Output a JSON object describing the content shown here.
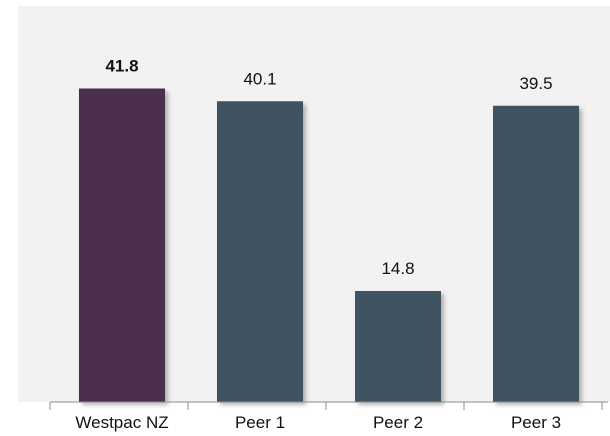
{
  "chart_data": {
    "type": "bar",
    "title": "",
    "xlabel": "",
    "ylabel": "",
    "categories": [
      "Westpac NZ",
      "Peer 1",
      "Peer 2",
      "Peer 3"
    ],
    "values": [
      41.8,
      40.1,
      14.8,
      39.5
    ],
    "data_labels": [
      "41.8",
      "40.1",
      "14.8",
      "39.5"
    ],
    "highlight_index": 0,
    "ylim": [
      0,
      46
    ],
    "grid": false,
    "legend": "none",
    "colors": {
      "highlight": "#4b2d4c",
      "bar": "#405260",
      "plot_background": "#f2f2f2",
      "axis": "#8c8c8c"
    }
  }
}
